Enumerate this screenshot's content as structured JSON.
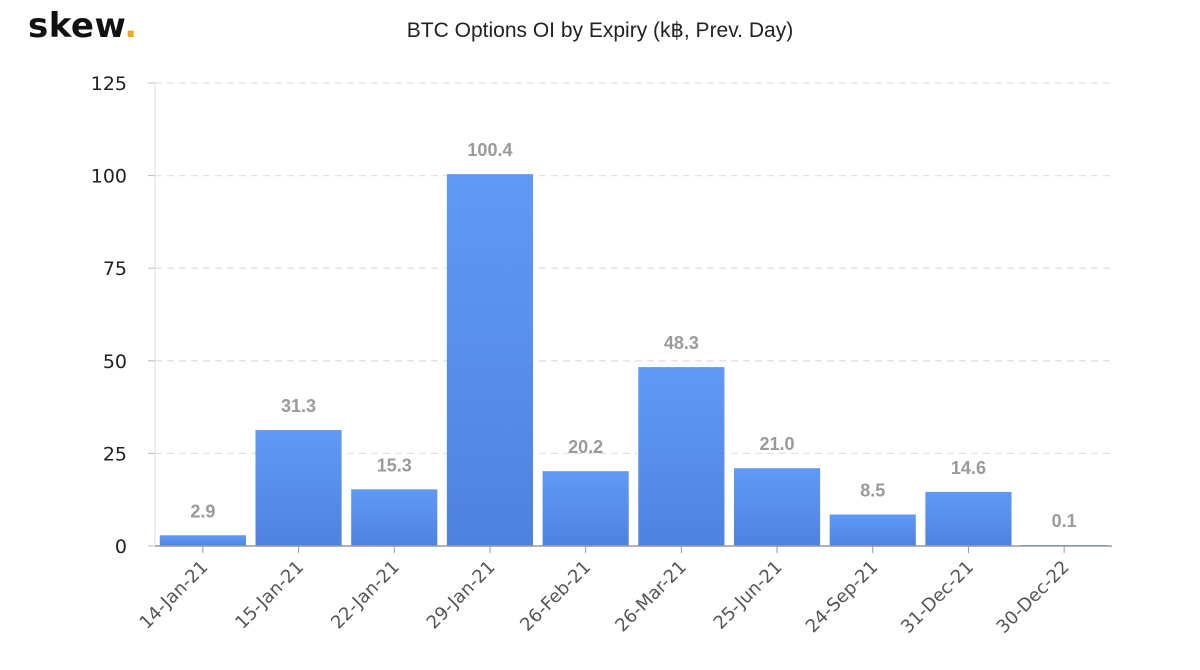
{
  "brand": {
    "name": "skew",
    "dot": ".",
    "dot_color": "#f5a623"
  },
  "chart_data": {
    "type": "bar",
    "title": "BTC Options OI by Expiry (k฿, Prev. Day)",
    "xlabel": "",
    "ylabel": "",
    "categories": [
      "14-Jan-21",
      "15-Jan-21",
      "22-Jan-21",
      "29-Jan-21",
      "26-Feb-21",
      "26-Mar-21",
      "25-Jun-21",
      "24-Sep-21",
      "31-Dec-21",
      "30-Dec-22"
    ],
    "values": [
      2.9,
      31.3,
      15.3,
      100.4,
      20.2,
      48.3,
      21.0,
      8.5,
      14.6,
      0.1
    ],
    "data_labels": [
      "2.9",
      "31.3",
      "15.3",
      "100.4",
      "20.2",
      "48.3",
      "21.0",
      "8.5",
      "14.6",
      "0.1"
    ],
    "ylim": [
      0,
      125
    ],
    "yticks": [
      0,
      25,
      50,
      75,
      100,
      125
    ],
    "grid": true,
    "legend": "none",
    "bar_color_top": "#6199f7",
    "bar_color_bottom": "#4f82e0",
    "grid_color": "#e2e2e2"
  }
}
